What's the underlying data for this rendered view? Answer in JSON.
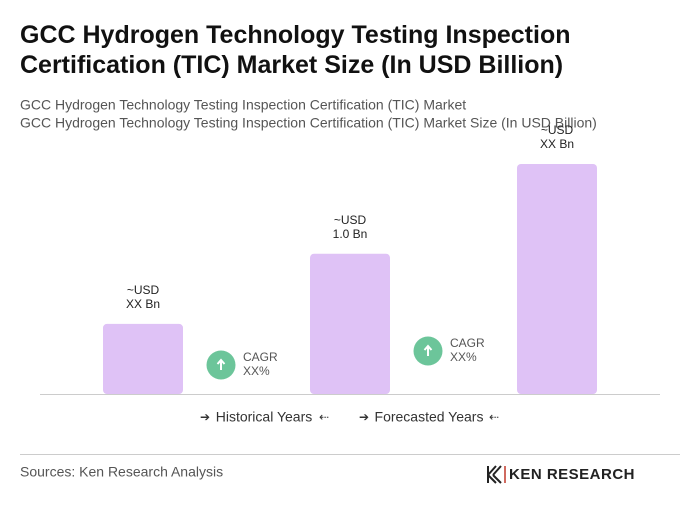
{
  "chart_data": {
    "type": "bar",
    "title": "GCC Hydrogen Technology Testing Inspection Certification (TIC) Market Size (In USD Billion)",
    "subtitles": [
      "GCC Hydrogen Technology Testing Inspection Certification (TIC) Market",
      "GCC Hydrogen Technology Testing Inspection Certification (TIC) Market Size (In USD Billion)"
    ],
    "categories": [
      null,
      null,
      null
    ],
    "values": [
      0.5,
      1.0,
      1.64
    ],
    "value_labels": [
      [
        "~USD",
        "XX Bn"
      ],
      [
        "~USD",
        "1.0 Bn"
      ],
      [
        "~USD",
        "XX Bn"
      ]
    ],
    "color": "#dfc2f6",
    "cagr": [
      [
        "CAGR",
        "XX%"
      ],
      [
        "CAGR",
        "XX%"
      ]
    ],
    "cagr_color": "#6cc59a",
    "periods": [
      "Historical Years",
      "Forecasted Years"
    ],
    "source": "Sources: Ken Research Analysis",
    "logo": "KEN RESEARCH"
  }
}
